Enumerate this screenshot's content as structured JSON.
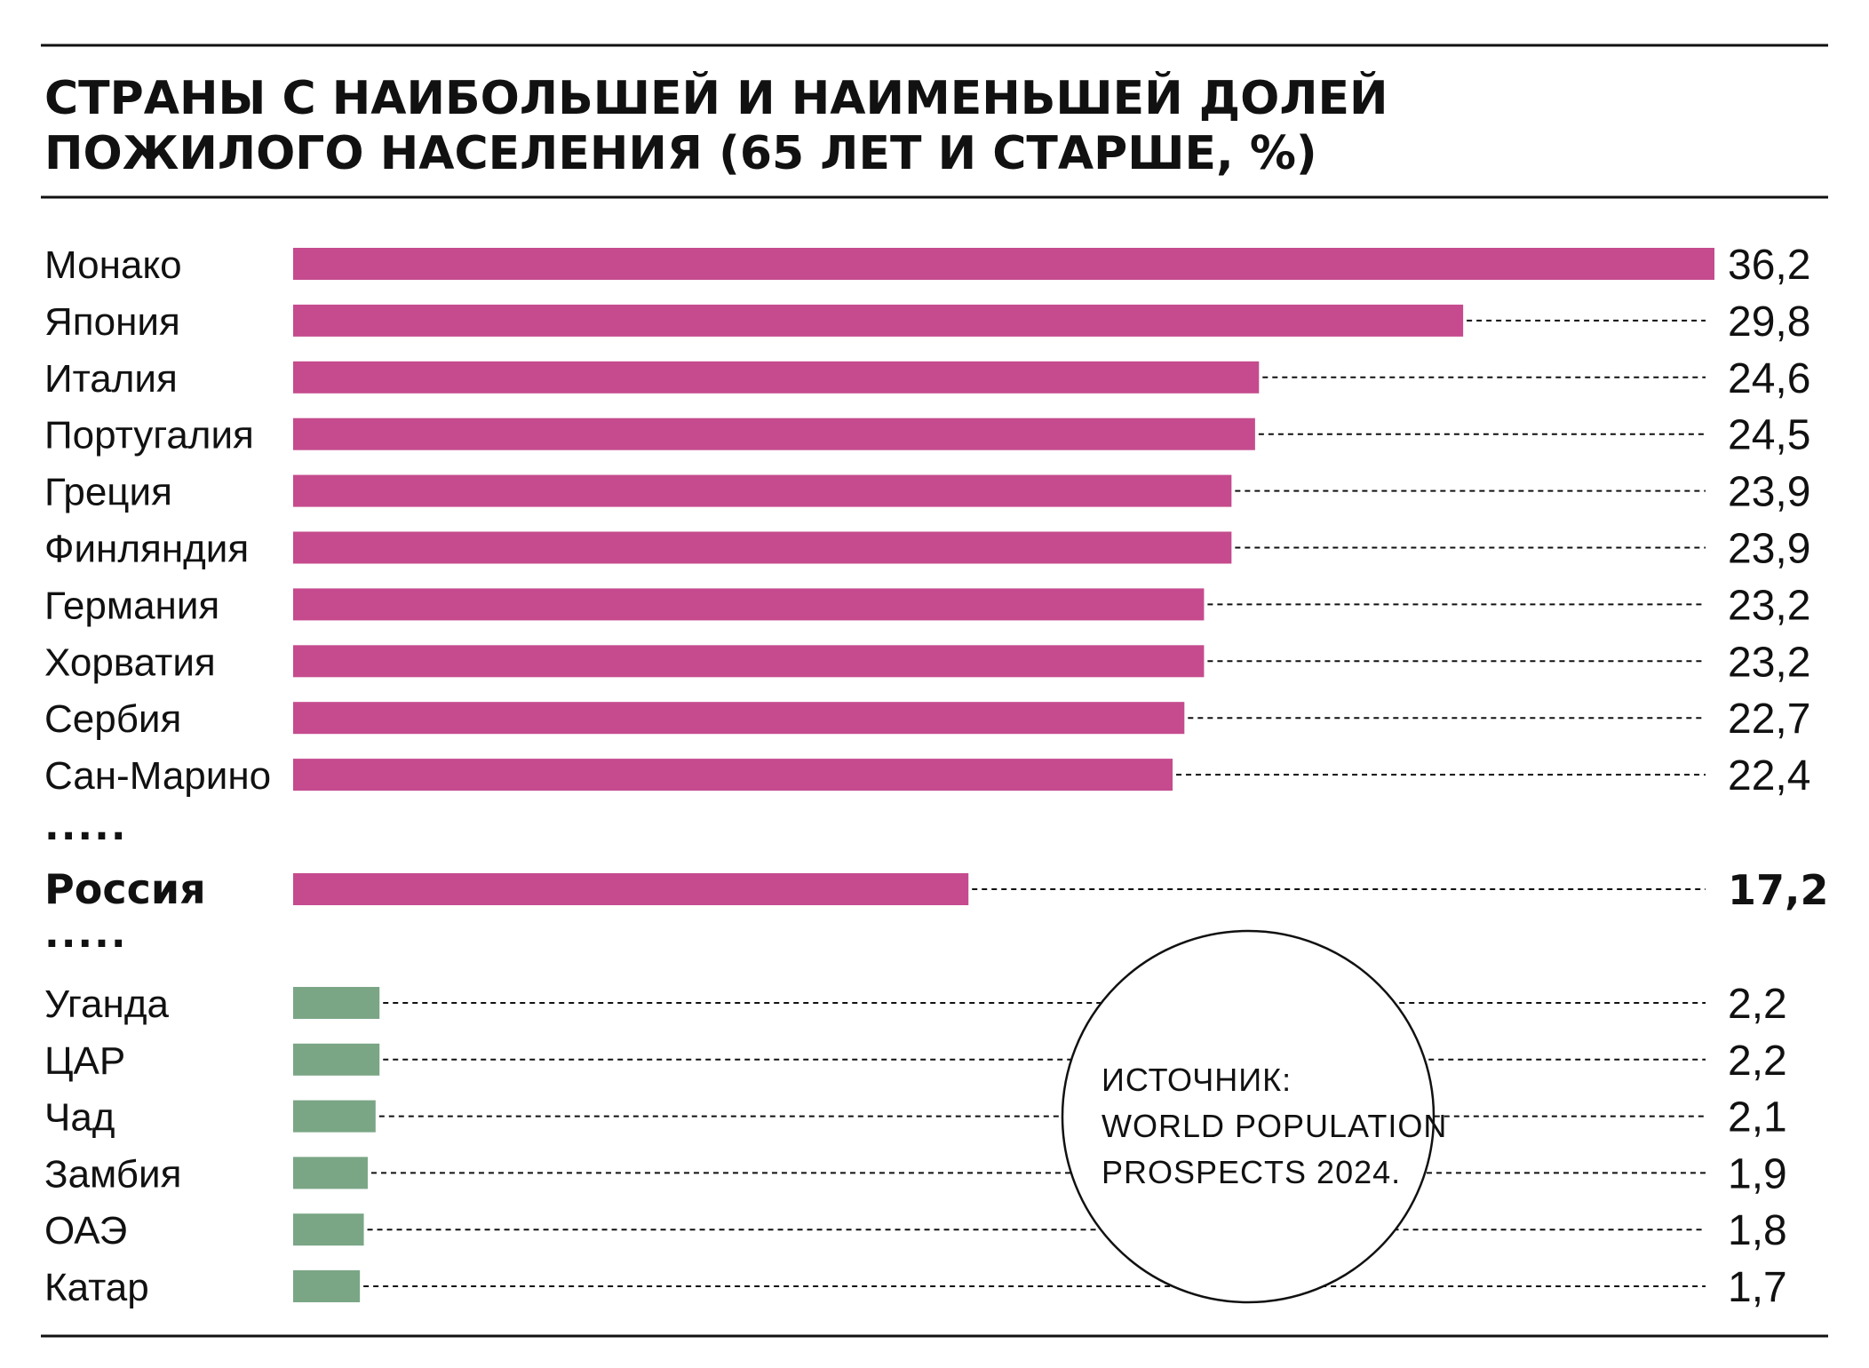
{
  "title_lines": [
    "СТРАНЫ  С НАИБОЛЬШЕЙ И НАИМЕНЬШЕЙ ДОЛЕЙ",
    "ПОЖИЛОГО НАСЕЛЕНИЯ (65 ЛЕТ И СТАРШЕ, %)"
  ],
  "separator_text": ".....",
  "source_lines": [
    "ИСТОЧНИК:",
    "WORLD POPULATION",
    "PROSPECTS 2024."
  ],
  "colors": {
    "top_bars": "#c54b8e",
    "bottom_bars": "#7aa685",
    "text": "#111111"
  },
  "chart_data": {
    "type": "bar",
    "orientation": "horizontal",
    "xlim": [
      0,
      36.2
    ],
    "groups": [
      {
        "group": "top",
        "rows": [
          {
            "label": "Монако",
            "value": 36.2,
            "display": "36,2"
          },
          {
            "label": "Япония",
            "value": 29.8,
            "display": "29,8"
          },
          {
            "label": "Италия",
            "value": 24.6,
            "display": "24,6"
          },
          {
            "label": "Португалия",
            "value": 24.5,
            "display": "24,5"
          },
          {
            "label": "Греция",
            "value": 23.9,
            "display": "23,9"
          },
          {
            "label": "Финляндия",
            "value": 23.9,
            "display": "23,9"
          },
          {
            "label": "Германия",
            "value": 23.2,
            "display": "23,2"
          },
          {
            "label": "Хорватия",
            "value": 23.2,
            "display": "23,2"
          },
          {
            "label": "Сербия",
            "value": 22.7,
            "display": "22,7"
          },
          {
            "label": "Сан-Марино",
            "value": 22.4,
            "display": "22,4"
          }
        ]
      },
      {
        "group": "highlight",
        "rows": [
          {
            "label": "Россия",
            "value": 17.2,
            "display": "17,2",
            "bold": true
          }
        ]
      },
      {
        "group": "bottom",
        "rows": [
          {
            "label": "Уганда",
            "value": 2.2,
            "display": "2,2"
          },
          {
            "label": "ЦАР",
            "value": 2.2,
            "display": "2,2"
          },
          {
            "label": "Чад",
            "value": 2.1,
            "display": "2,1"
          },
          {
            "label": "Замбия",
            "value": 1.9,
            "display": "1,9"
          },
          {
            "label": "ОАЭ",
            "value": 1.8,
            "display": "1,8"
          },
          {
            "label": "Катар",
            "value": 1.7,
            "display": "1,7"
          }
        ]
      }
    ]
  }
}
